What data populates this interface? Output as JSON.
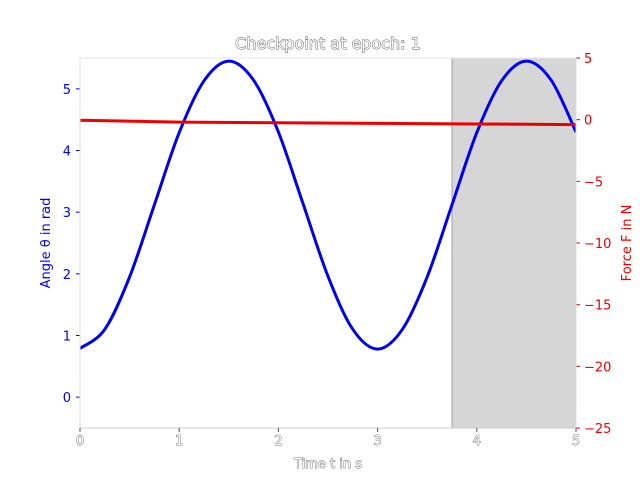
{
  "chart_data": {
    "type": "line",
    "title": "Checkpoint at epoch: 1",
    "xlabel": "Time t in s",
    "ylabel_left": "Angle θ in rad",
    "ylabel_right": "Force F in N",
    "xlim": [
      0,
      5
    ],
    "ylim_left": [
      -0.5,
      5.5
    ],
    "ylim_right": [
      -25,
      5
    ],
    "x_ticks": [
      "0",
      "1",
      "2",
      "3",
      "4",
      "5"
    ],
    "y_left_ticks": [
      "0",
      "1",
      "2",
      "3",
      "4",
      "5"
    ],
    "y_right_ticks": [
      "5",
      "0",
      "−5",
      "−10",
      "−15",
      "−20",
      "−25"
    ],
    "grid": false,
    "shaded_region": {
      "x_start": 3.75,
      "x_end": 5,
      "color": "#d6d6d6"
    },
    "series": [
      {
        "axis": "left",
        "color": "#0000ee",
        "x": [
          0,
          0.25,
          0.5,
          0.75,
          1.0,
          1.25,
          1.5,
          1.75,
          2.0,
          2.25,
          2.5,
          2.75,
          3.0,
          3.25,
          3.5,
          3.75,
          4.0,
          4.25,
          4.5,
          4.75,
          5.0
        ],
        "y": [
          0.79,
          1.1,
          1.95,
          3.12,
          4.29,
          5.13,
          5.45,
          5.14,
          4.3,
          3.13,
          1.96,
          1.1,
          0.78,
          1.1,
          1.95,
          3.12,
          4.29,
          5.13,
          5.45,
          5.14,
          4.3
        ]
      },
      {
        "axis": "right",
        "color": "#ee0000",
        "x": [
          0,
          1,
          2,
          3,
          4,
          5
        ],
        "y": [
          -0.05,
          -0.2,
          -0.25,
          -0.3,
          -0.35,
          -0.4
        ]
      }
    ]
  }
}
